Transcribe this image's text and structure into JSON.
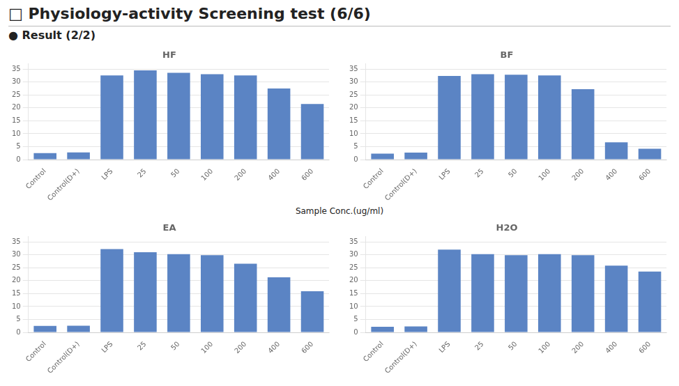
{
  "title": "□ Physiology-activity Screening test (6/6)",
  "subtitle": "● Result (2/2)",
  "xlabel": "Sample Conc.(ug/ml)",
  "chart_data": [
    {
      "type": "bar",
      "title": "HF",
      "categories": [
        "Control",
        "Control(D+)",
        "LPS",
        "25",
        "50",
        "100",
        "200",
        "400",
        "600"
      ],
      "values": [
        2.5,
        2.8,
        32.5,
        34.5,
        33.5,
        33.0,
        32.5,
        27.5,
        21.5
      ],
      "color": "#5B84C4",
      "ylim": [
        0,
        37
      ],
      "yticks": [
        0,
        5,
        10,
        15,
        20,
        25,
        30,
        35
      ],
      "grid": true
    },
    {
      "type": "bar",
      "title": "BF",
      "categories": [
        "Control",
        "Control(D+)",
        "LPS",
        "25",
        "50",
        "100",
        "200",
        "400",
        "600"
      ],
      "values": [
        2.3,
        2.7,
        32.3,
        33.0,
        32.8,
        32.5,
        27.2,
        6.7,
        4.2
      ],
      "color": "#5B84C4",
      "ylim": [
        0,
        37
      ],
      "yticks": [
        0,
        5,
        10,
        15,
        20,
        25,
        30,
        35
      ],
      "grid": true
    },
    {
      "type": "bar",
      "title": "EA",
      "categories": [
        "Control",
        "Control(D+)",
        "LPS",
        "25",
        "50",
        "100",
        "200",
        "400",
        "600"
      ],
      "values": [
        2.5,
        2.6,
        32.2,
        31.0,
        30.2,
        29.8,
        26.5,
        21.3,
        15.9
      ],
      "color": "#5B84C4",
      "ylim": [
        0,
        37
      ],
      "yticks": [
        0,
        5,
        10,
        15,
        20,
        25,
        30,
        35
      ],
      "grid": true
    },
    {
      "type": "bar",
      "title": "H2O",
      "categories": [
        "Control",
        "Control(D+)",
        "LPS",
        "25",
        "50",
        "100",
        "200",
        "400",
        "600"
      ],
      "values": [
        2.2,
        2.3,
        32.0,
        30.2,
        29.8,
        30.2,
        29.8,
        25.8,
        23.5
      ],
      "color": "#5B84C4",
      "ylim": [
        0,
        37
      ],
      "yticks": [
        0,
        5,
        10,
        15,
        20,
        25,
        30,
        35
      ],
      "grid": true
    }
  ]
}
